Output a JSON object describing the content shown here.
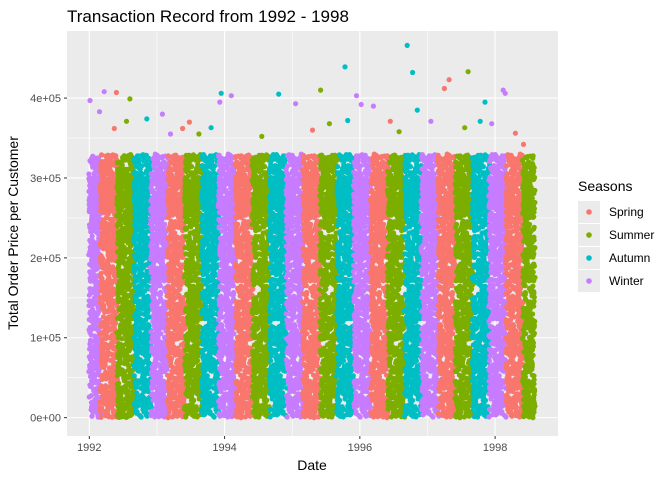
{
  "chart_data": {
    "type": "scatter",
    "title": "Transaction Record from 1992 - 1998",
    "xlabel": "Date",
    "ylabel": "Total Order Price per Customer",
    "x_ticks": [
      {
        "value": 1992,
        "label": "1992"
      },
      {
        "value": 1994,
        "label": "1994"
      },
      {
        "value": 1996,
        "label": "1996"
      },
      {
        "value": 1998,
        "label": "1998"
      }
    ],
    "y_ticks": [
      {
        "value": 0,
        "label": "0e+00"
      },
      {
        "value": 100000,
        "label": "1e+05"
      },
      {
        "value": 200000,
        "label": "2e+05"
      },
      {
        "value": 300000,
        "label": "3e+05"
      },
      {
        "value": 400000,
        "label": "4e+05"
      }
    ],
    "xlim": [
      1991.67,
      1998.93
    ],
    "ylim": [
      -23000,
      484000
    ],
    "grid": true,
    "legend": {
      "title": "Seasons",
      "placement": "right",
      "entries": [
        "Spring",
        "Summer",
        "Autumn",
        "Winter"
      ]
    },
    "season_colors": {
      "Spring": "#F8766D",
      "Summer": "#7CAE00",
      "Autumn": "#00BFC4",
      "Winter": "#C77CFF"
    },
    "date_range": [
      "1992-01-01",
      "1998-08-02"
    ],
    "bulk_max": 300000,
    "outliers": [
      {
        "x": 1992.01,
        "y": 397000,
        "season": "Winter"
      },
      {
        "x": 1992.15,
        "y": 383000,
        "season": "Winter"
      },
      {
        "x": 1992.22,
        "y": 408000,
        "season": "Winter"
      },
      {
        "x": 1992.4,
        "y": 407000,
        "season": "Spring"
      },
      {
        "x": 1992.37,
        "y": 362000,
        "season": "Spring"
      },
      {
        "x": 1992.55,
        "y": 371000,
        "season": "Summer"
      },
      {
        "x": 1992.6,
        "y": 399000,
        "season": "Summer"
      },
      {
        "x": 1992.85,
        "y": 374000,
        "season": "Autumn"
      },
      {
        "x": 1993.08,
        "y": 380000,
        "season": "Winter"
      },
      {
        "x": 1993.2,
        "y": 355000,
        "season": "Winter"
      },
      {
        "x": 1993.38,
        "y": 362000,
        "season": "Spring"
      },
      {
        "x": 1993.48,
        "y": 370000,
        "season": "Spring"
      },
      {
        "x": 1993.62,
        "y": 355000,
        "season": "Summer"
      },
      {
        "x": 1993.8,
        "y": 363000,
        "season": "Autumn"
      },
      {
        "x": 1993.95,
        "y": 406000,
        "season": "Autumn"
      },
      {
        "x": 1993.93,
        "y": 395000,
        "season": "Winter"
      },
      {
        "x": 1994.1,
        "y": 403000,
        "season": "Winter"
      },
      {
        "x": 1994.55,
        "y": 352000,
        "season": "Summer"
      },
      {
        "x": 1994.8,
        "y": 405000,
        "season": "Autumn"
      },
      {
        "x": 1995.05,
        "y": 393000,
        "season": "Winter"
      },
      {
        "x": 1995.3,
        "y": 360000,
        "season": "Spring"
      },
      {
        "x": 1995.42,
        "y": 410000,
        "season": "Summer"
      },
      {
        "x": 1995.55,
        "y": 368000,
        "season": "Summer"
      },
      {
        "x": 1995.78,
        "y": 439000,
        "season": "Autumn"
      },
      {
        "x": 1995.82,
        "y": 372000,
        "season": "Autumn"
      },
      {
        "x": 1995.95,
        "y": 403000,
        "season": "Winter"
      },
      {
        "x": 1996.02,
        "y": 392000,
        "season": "Winter"
      },
      {
        "x": 1996.2,
        "y": 390000,
        "season": "Winter"
      },
      {
        "x": 1996.45,
        "y": 371000,
        "season": "Spring"
      },
      {
        "x": 1996.58,
        "y": 358000,
        "season": "Summer"
      },
      {
        "x": 1996.7,
        "y": 466000,
        "season": "Autumn"
      },
      {
        "x": 1996.78,
        "y": 432000,
        "season": "Autumn"
      },
      {
        "x": 1996.85,
        "y": 385000,
        "season": "Autumn"
      },
      {
        "x": 1997.05,
        "y": 371000,
        "season": "Winter"
      },
      {
        "x": 1997.25,
        "y": 412000,
        "season": "Spring"
      },
      {
        "x": 1997.32,
        "y": 423000,
        "season": "Spring"
      },
      {
        "x": 1997.6,
        "y": 433000,
        "season": "Summer"
      },
      {
        "x": 1997.55,
        "y": 363000,
        "season": "Summer"
      },
      {
        "x": 1997.78,
        "y": 371000,
        "season": "Autumn"
      },
      {
        "x": 1997.85,
        "y": 395000,
        "season": "Autumn"
      },
      {
        "x": 1997.95,
        "y": 368000,
        "season": "Winter"
      },
      {
        "x": 1998.12,
        "y": 410000,
        "season": "Winter"
      },
      {
        "x": 1998.15,
        "y": 406000,
        "season": "Winter"
      },
      {
        "x": 1998.3,
        "y": 356000,
        "season": "Spring"
      },
      {
        "x": 1998.42,
        "y": 342000,
        "season": "Spring"
      }
    ]
  }
}
